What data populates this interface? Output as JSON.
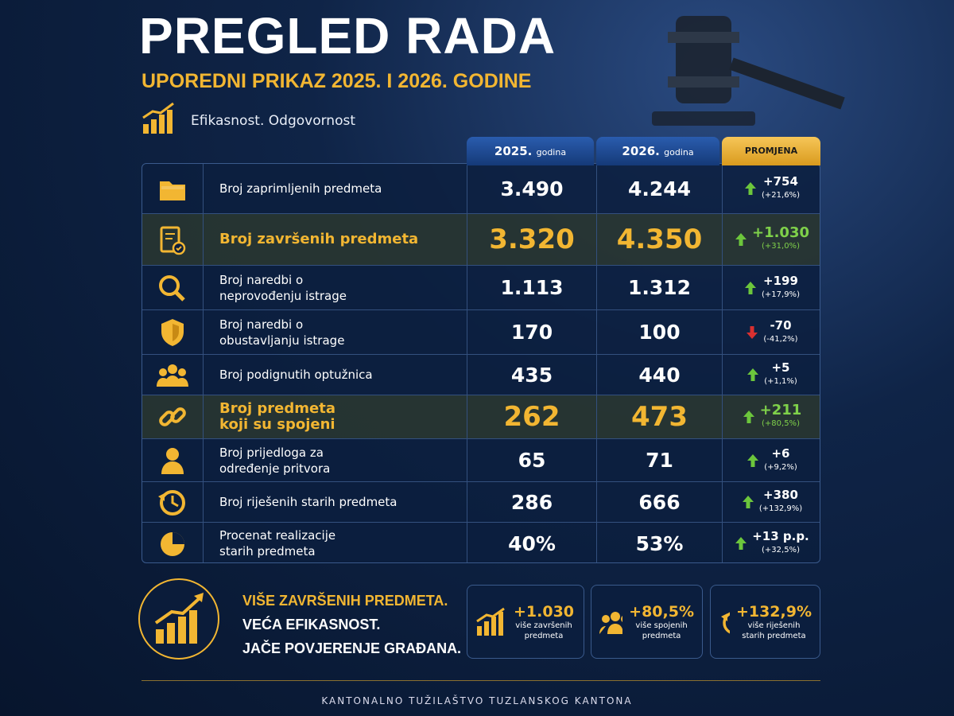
{
  "header": {
    "title": "PREGLED RADA",
    "subtitle": "UPOREDNI PRIKAZ 2025. I 2026. GODINE",
    "tagline": "Efikasnost. Odgovornost"
  },
  "table": {
    "columns": [
      {
        "year": "2025.",
        "unit": "godina"
      },
      {
        "year": "2026.",
        "unit": "godina"
      },
      {
        "year": "PROMJENA"
      }
    ],
    "rows": [
      {
        "label": [
          "Broj zaprimljenih predmeta"
        ],
        "v2025": "3.490",
        "v2026": "4.244",
        "change": "+754",
        "change_pct": "(+21,6%)",
        "direction": "up",
        "highlight": false
      },
      {
        "label": [
          "Broj završenih predmeta"
        ],
        "v2025": "3.320",
        "v2026": "4.350",
        "change": "+1.030",
        "change_pct": "(+31,0%)",
        "direction": "up",
        "highlight": true
      },
      {
        "label": [
          "Broj naredbi o",
          "neprovođenju istrage"
        ],
        "v2025": "1.113",
        "v2026": "1.312",
        "change": "+199",
        "change_pct": "(+17,9%)",
        "direction": "up",
        "highlight": false
      },
      {
        "label": [
          "Broj naredbi o",
          "obustavljanju istrage"
        ],
        "v2025": "170",
        "v2026": "100",
        "change": "-70",
        "change_pct": "(-41,2%)",
        "direction": "down",
        "highlight": false
      },
      {
        "label": [
          "Broj podignutih optužnica"
        ],
        "v2025": "435",
        "v2026": "440",
        "change": "+5",
        "change_pct": "(+1,1%)",
        "direction": "up",
        "highlight": false
      },
      {
        "label": [
          "Broj predmeta",
          "koji su spojeni"
        ],
        "v2025": "262",
        "v2026": "473",
        "change": "+211",
        "change_pct": "(+80,5%)",
        "direction": "up",
        "highlight": true
      },
      {
        "label": [
          "Broj prijedloga za",
          "određenje pritvora"
        ],
        "v2025": "65",
        "v2026": "71",
        "change": "+6",
        "change_pct": "(+9,2%)",
        "direction": "up",
        "highlight": false
      },
      {
        "label": [
          "Broj riješenih starih predmeta"
        ],
        "v2025": "286",
        "v2026": "666",
        "change": "+380",
        "change_pct": "(+132,9%)",
        "direction": "up",
        "highlight": false
      },
      {
        "label": [
          "Procenat realizacije",
          "starih predmeta"
        ],
        "v2025": "40%",
        "v2026": "53%",
        "change": "+13 p.p.",
        "change_pct": "(+32,5%)",
        "direction": "up",
        "highlight": false
      }
    ]
  },
  "summary": {
    "slogan": [
      "VIŠE ZAVRŠENIH PREDMETA.",
      "VEĆA EFIKASNOST.",
      "JAČE POVJERENJE GRAĐANA."
    ],
    "cards": [
      {
        "value": "+1.030",
        "text": [
          "više završenih",
          "predmeta"
        ]
      },
      {
        "value": "+80,5%",
        "text": [
          "više spojenih",
          "predmeta"
        ]
      },
      {
        "value": "+132,9%",
        "text": [
          "više riješenih",
          "starih predmeta"
        ]
      }
    ]
  },
  "footer": "KANTONALNO TUŽILAŠTVO TUZLANSKOG KANTONA"
}
